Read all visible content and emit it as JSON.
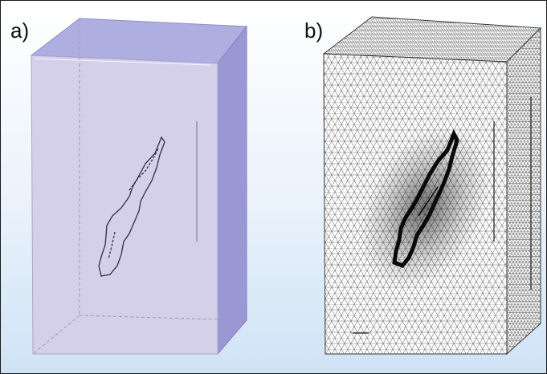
{
  "panels": [
    {
      "label": "a)",
      "view": "geometry"
    },
    {
      "label": "b)",
      "view": "mesh"
    }
  ],
  "colors": {
    "front_face": "#d4d0ea",
    "side_face": "#9a98d4",
    "top_face": "#aeaee0",
    "mesh_line": "#7a7a7a",
    "fracture_edge": "#2e2e4a",
    "background_top": "#ffffff",
    "background_bottom": "#cfe3f6"
  }
}
